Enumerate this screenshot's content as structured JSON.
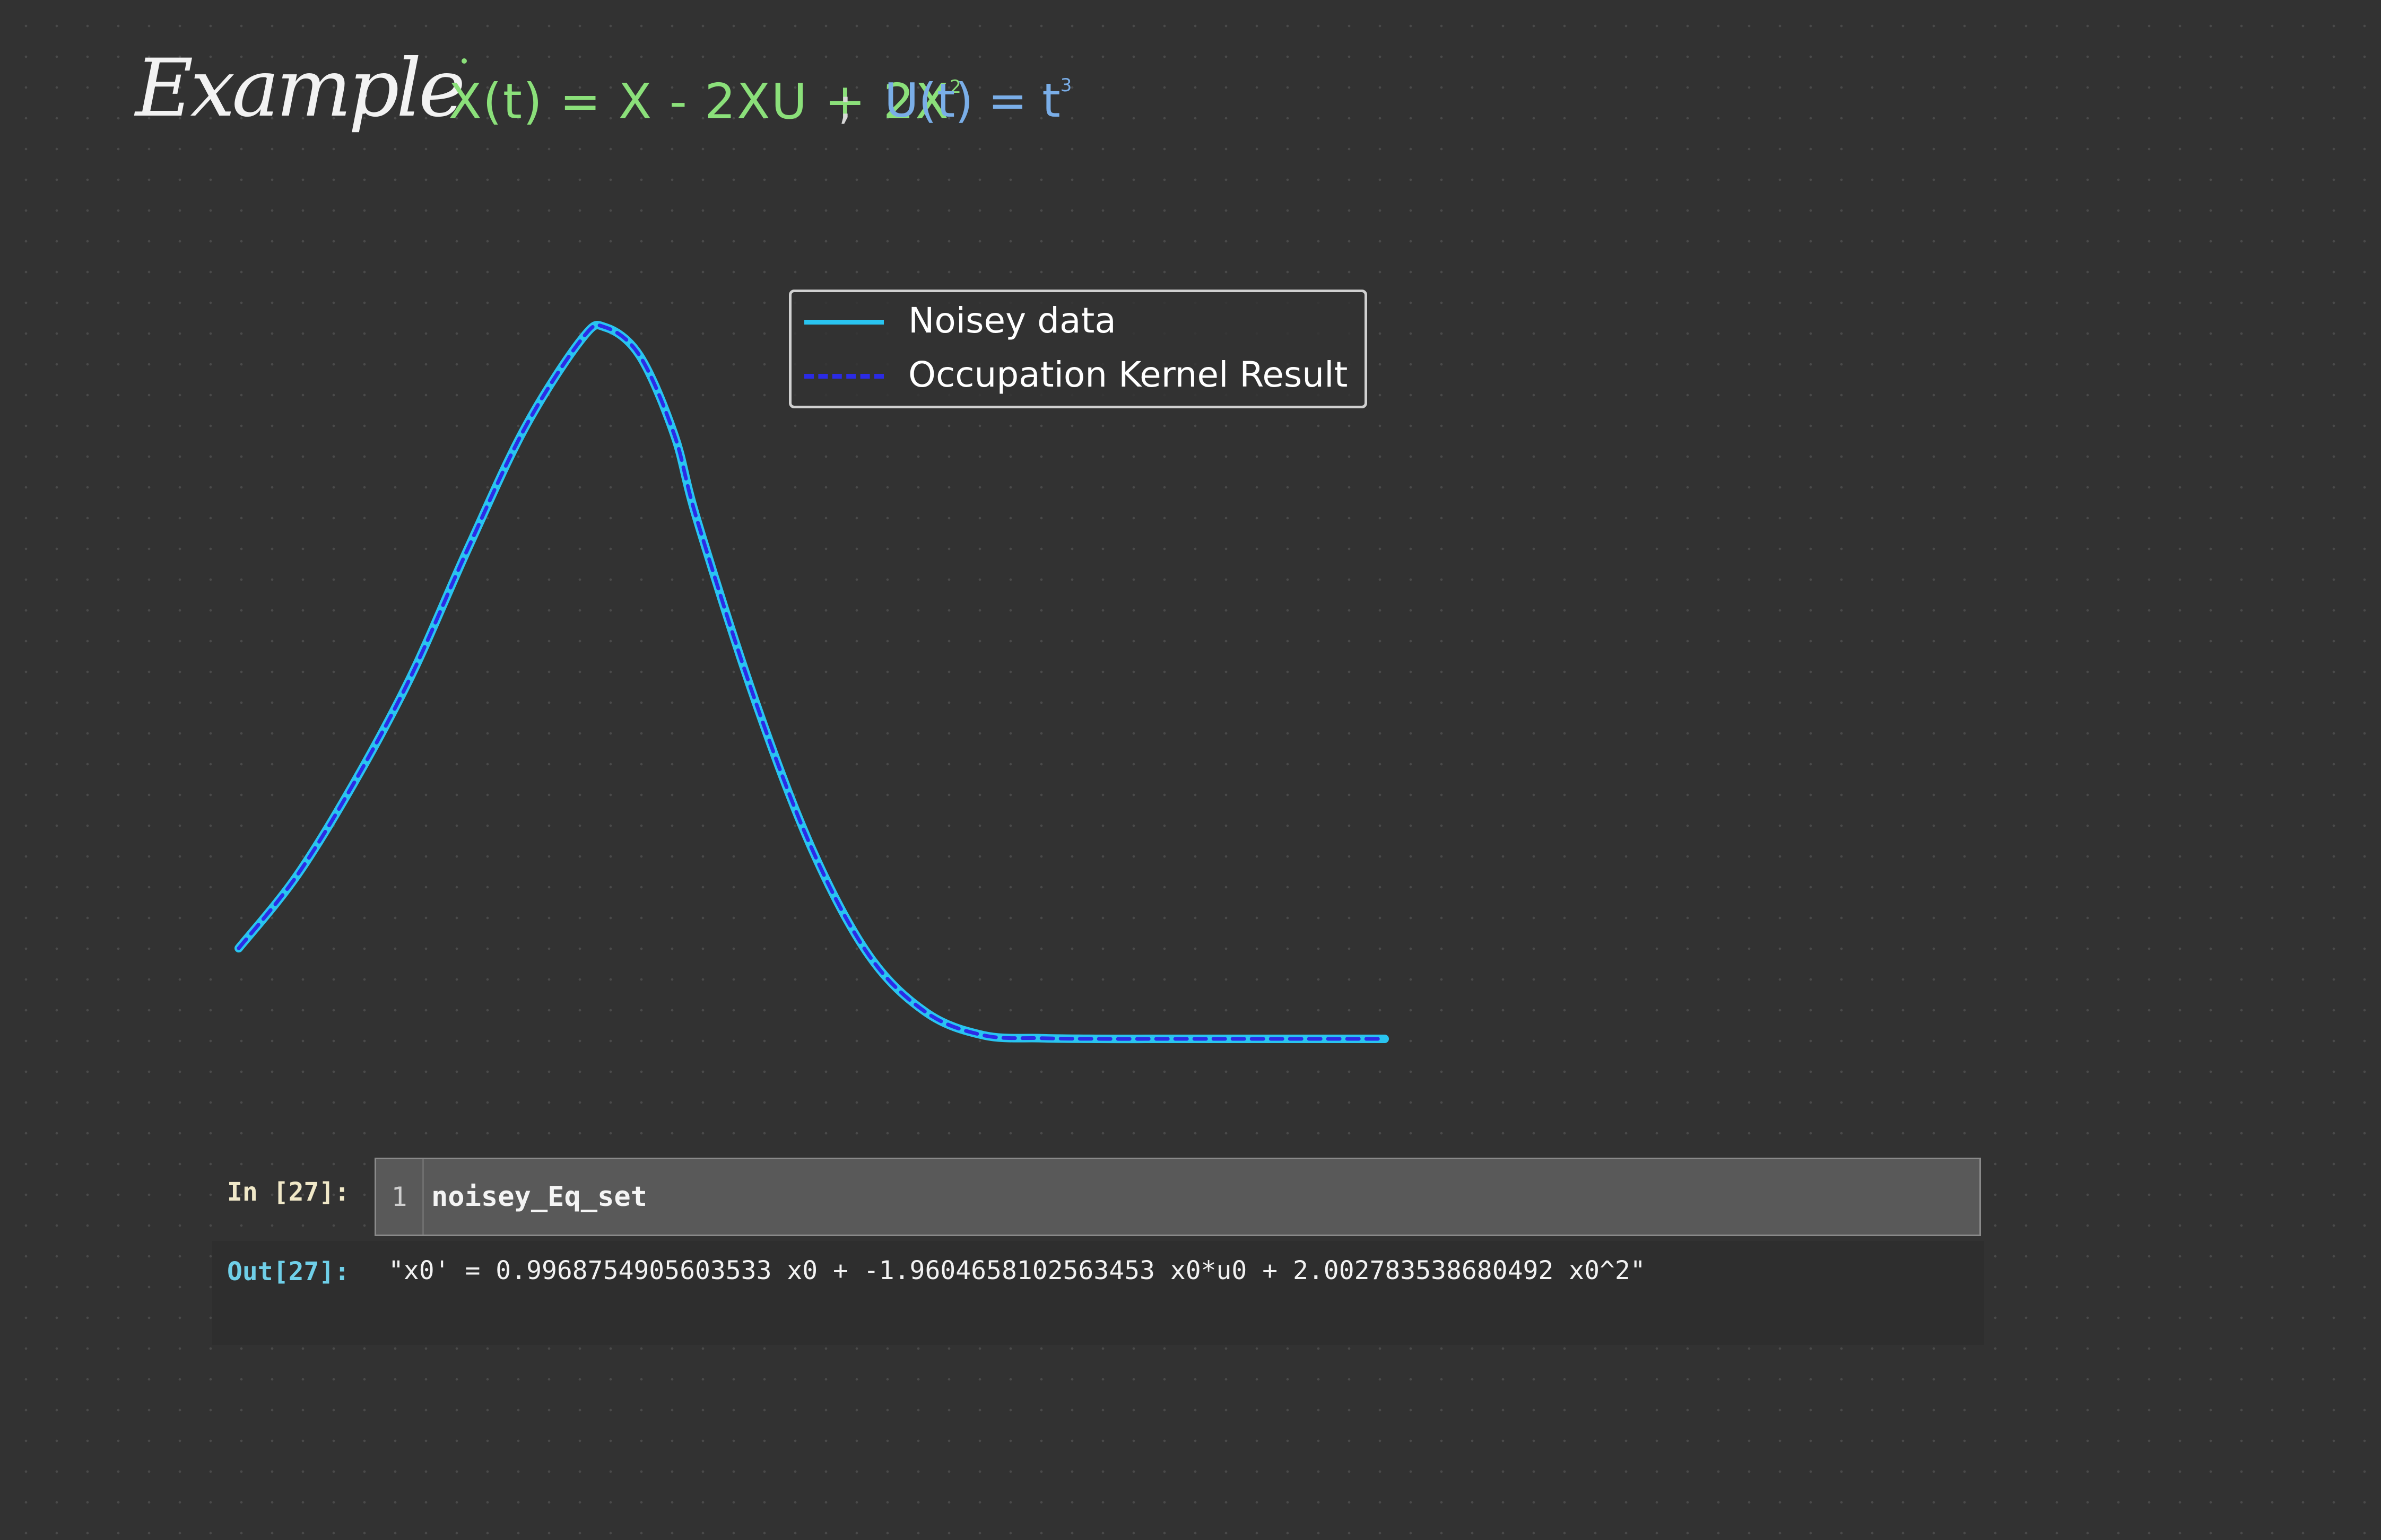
{
  "heading": {
    "word": "Example",
    "colon": ":",
    "equation_lhs_rhs": "X(t) = X - 2XU + 2X",
    "equation_exponent": "2",
    "separator": ";",
    "input_def": "U(t) = t",
    "input_exponent": "3",
    "colors": {
      "word": "#f2f2f2",
      "equation": "#8be07a",
      "input_def": "#7aaee8"
    }
  },
  "chart_data": {
    "type": "line",
    "title": "",
    "xlabel": "",
    "ylabel": "",
    "axes_visible": false,
    "grid": false,
    "legend_position": "top-right",
    "x": [
      0.0,
      0.5,
      1.0,
      1.5,
      2.0,
      2.5,
      3.0,
      3.2,
      3.5,
      3.8,
      4.0,
      4.5,
      5.0,
      5.5,
      6.0,
      6.5,
      7.0,
      7.5,
      8.0,
      8.5,
      9.0,
      9.5,
      10.0
    ],
    "series": [
      {
        "name": "Noisey data",
        "color": "#29c4f0",
        "style": "solid",
        "values": [
          0.13,
          0.23,
          0.36,
          0.51,
          0.69,
          0.86,
          0.985,
          1.0,
          0.96,
          0.85,
          0.73,
          0.48,
          0.27,
          0.12,
          0.04,
          0.008,
          0.004,
          0.003,
          0.003,
          0.003,
          0.003,
          0.003,
          0.003
        ]
      },
      {
        "name": "Occupation Kernel Result",
        "color": "#2b2be6",
        "style": "dashed",
        "values": [
          0.13,
          0.23,
          0.36,
          0.51,
          0.69,
          0.86,
          0.985,
          1.0,
          0.96,
          0.85,
          0.73,
          0.48,
          0.27,
          0.12,
          0.04,
          0.008,
          0.004,
          0.003,
          0.003,
          0.003,
          0.003,
          0.003,
          0.003
        ]
      }
    ],
    "xlim": [
      0,
      10
    ],
    "ylim": [
      -0.02,
      1.05
    ]
  },
  "legend": {
    "entries": [
      {
        "label": "Noisey data"
      },
      {
        "label": "Occupation Kernel Result"
      }
    ]
  },
  "notebook": {
    "input_prompt": "In [27]:",
    "line_number": "1",
    "code": "noisey_Eq_set",
    "output_prompt": "Out[27]:",
    "output": "\"x0' = 0.9968754905603533 x0 + -1.9604658102563453 x0*u0 + 2.002783538680492 x0^2\""
  }
}
